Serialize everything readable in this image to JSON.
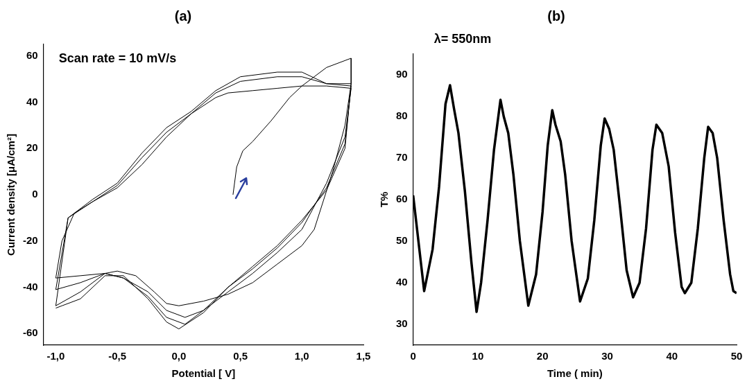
{
  "chart_data": [
    {
      "type": "line",
      "title": "(a)",
      "xlabel": "Potential [ V]",
      "ylabel": "Current density [μA/cm²]",
      "annotations": [
        "Scan rate = 10 mV/s"
      ],
      "marker": "none",
      "grid": false,
      "legend": false,
      "xlim": [
        -1.1,
        1.5
      ],
      "ylim": [
        -65,
        65
      ],
      "xticks": [
        {
          "value": -1,
          "label": "-1,0"
        },
        {
          "value": -0.5,
          "label": "-0,5"
        },
        {
          "value": 0,
          "label": "0,0"
        },
        {
          "value": 0.5,
          "label": "0,5"
        },
        {
          "value": 1,
          "label": "1,0"
        },
        {
          "value": 1.5,
          "label": "1,5"
        }
      ],
      "yticks": [
        -60,
        -40,
        -20,
        0,
        20,
        40,
        60
      ],
      "series": [
        {
          "color": "#000000",
          "x": [
            0.44,
            0.47,
            0.52,
            0.6,
            0.75,
            0.9,
            1.0,
            1.2,
            1.4,
            1.4,
            1.35,
            1.25,
            1.1,
            1.0,
            0.8,
            0.6,
            0.4,
            0.2,
            0.0,
            -0.1,
            -0.2,
            -0.35,
            -0.5,
            -0.6,
            -0.8,
            -1.0,
            -0.95,
            -0.85,
            -0.7,
            -0.5,
            -0.3,
            -0.1,
            0.1,
            0.3,
            0.4,
            0.6,
            0.8,
            1.0,
            1.2,
            1.4
          ],
          "values": [
            0,
            12,
            19,
            23,
            32,
            42,
            47,
            55,
            59,
            48,
            30,
            10,
            -15,
            -22,
            -30,
            -38,
            -43,
            -46,
            -48,
            -47,
            -42,
            -35,
            -33,
            -34,
            -35,
            -36,
            -20,
            -8,
            -3,
            3,
            13,
            25,
            35,
            42,
            44,
            45,
            46,
            47,
            47,
            46
          ]
        },
        {
          "color": "#000000",
          "x": [
            1.4,
            1.35,
            1.2,
            1.0,
            0.8,
            0.6,
            0.4,
            0.2,
            0.05,
            -0.1,
            -0.25,
            -0.45,
            -0.6,
            -0.8,
            -1.0,
            -0.9,
            -0.7,
            -0.5,
            -0.3,
            -0.1,
            0.1,
            0.3,
            0.5,
            0.8,
            1.0,
            1.2,
            1.4
          ],
          "values": [
            46,
            25,
            5,
            -15,
            -25,
            -34,
            -42,
            -50,
            -53,
            -50,
            -42,
            -36,
            -34,
            -38,
            -41,
            -10,
            -3,
            4,
            16,
            27,
            35,
            44,
            49,
            51,
            51,
            48,
            47
          ]
        },
        {
          "color": "#000000",
          "x": [
            1.4,
            1.35,
            1.2,
            1.0,
            0.8,
            0.6,
            0.4,
            0.2,
            0.05,
            -0.1,
            -0.25,
            -0.45,
            -0.6,
            -0.8,
            -1.0,
            -0.9,
            -0.7,
            -0.5,
            -0.3,
            -0.1,
            0.1,
            0.3,
            0.5,
            0.8,
            1.0,
            1.2,
            1.4
          ],
          "values": [
            47,
            22,
            3,
            -12,
            -23,
            -32,
            -40,
            -50,
            -56,
            -53,
            -44,
            -36,
            -34,
            -42,
            -48,
            -10,
            -2,
            5,
            18,
            29,
            36,
            45,
            51,
            53,
            53,
            48,
            48
          ]
        },
        {
          "color": "#000000",
          "x": [
            1.4,
            1.35,
            1.2,
            1.0,
            0.8,
            0.6,
            0.4,
            0.2,
            0.0,
            -0.1,
            -0.25,
            -0.45,
            -0.6,
            -0.8,
            -0.95,
            -1.0
          ],
          "values": [
            48,
            20,
            2,
            -11,
            -22,
            -31,
            -40,
            -51,
            -58,
            -55,
            -45,
            -35,
            -35,
            -45,
            -48,
            -49
          ]
        }
      ]
    },
    {
      "type": "line",
      "title": "(b)",
      "xlabel": "Time ( min)",
      "ylabel": "T%",
      "annotations": [
        "λ= 550nm"
      ],
      "marker": "none",
      "grid": false,
      "legend": false,
      "xlim": [
        0,
        50
      ],
      "ylim": [
        25,
        95
      ],
      "xticks": [
        0,
        10,
        20,
        30,
        40,
        50
      ],
      "yticks": [
        30,
        40,
        50,
        60,
        70,
        80,
        90
      ],
      "series": [
        {
          "color": "#000000",
          "x": [
            0,
            1.7,
            3,
            4,
            5,
            5.7,
            6.3,
            7,
            8,
            9,
            9.8,
            10.5,
            11.5,
            12.5,
            13.5,
            14,
            14.7,
            15.5,
            16.5,
            17.8,
            19,
            20,
            20.8,
            21.5,
            22,
            22.8,
            23.5,
            24.5,
            25.8,
            27,
            28,
            29,
            29.6,
            30.3,
            31,
            32,
            33,
            34,
            35,
            36,
            37,
            37.6,
            38.5,
            39.5,
            40.5,
            41.5,
            42,
            43,
            44,
            45,
            45.6,
            46.3,
            47,
            48,
            49,
            49.5,
            50
          ],
          "values": [
            61,
            38,
            48,
            63,
            83,
            87.5,
            82,
            76,
            62,
            45,
            33,
            40,
            55,
            72,
            84,
            80,
            76,
            66,
            50,
            34.5,
            42,
            57,
            73,
            81.5,
            78,
            74,
            66,
            50,
            35.5,
            41,
            55,
            73,
            79.5,
            77,
            72,
            58,
            43,
            36.5,
            40,
            53,
            72,
            78,
            76,
            68,
            52,
            39,
            37.5,
            40,
            53,
            70,
            77.5,
            76,
            70,
            55,
            42,
            38,
            37.5
          ]
        }
      ]
    }
  ]
}
